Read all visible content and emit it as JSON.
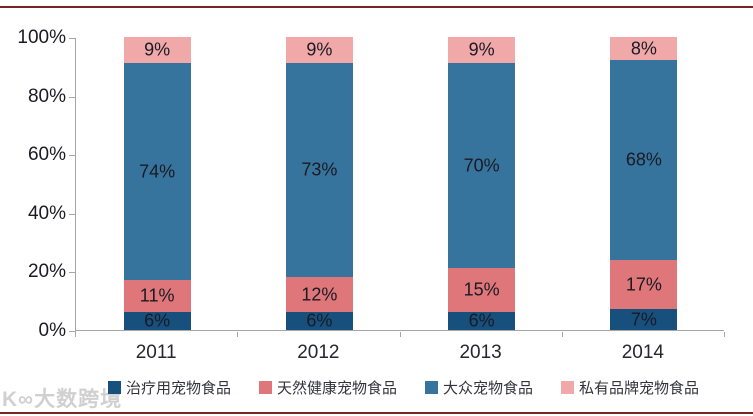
{
  "watermark": "K∞大数跨境",
  "page": {
    "background": "#ffffff",
    "border_line_color": "#7a2328",
    "axis_color": "#a6a6a6",
    "label_color": "#1a1a24"
  },
  "chart_data": {
    "type": "bar",
    "variant": "stacked-100-percent",
    "categories": [
      "2011",
      "2012",
      "2013",
      "2014"
    ],
    "series": [
      {
        "name": "治疗用宠物食品",
        "color": "#174f7d",
        "values": [
          6,
          6,
          6,
          7
        ]
      },
      {
        "name": "天然健康宠物食品",
        "color": "#df767a",
        "values": [
          11,
          12,
          15,
          17
        ]
      },
      {
        "name": "大众宠物食品",
        "color": "#36749d",
        "values": [
          74,
          73,
          70,
          68
        ]
      },
      {
        "name": "私有品牌宠物食品",
        "color": "#f0a8a8",
        "values": [
          9,
          9,
          9,
          8
        ]
      }
    ],
    "y_ticks": [
      0,
      20,
      40,
      60,
      80,
      100
    ],
    "y_tick_format": "{v}%",
    "ylim": [
      0,
      100
    ],
    "data_label_format": "{v}%",
    "grid": false,
    "legend_position": "bottom",
    "title": "",
    "xlabel": "",
    "ylabel": ""
  }
}
